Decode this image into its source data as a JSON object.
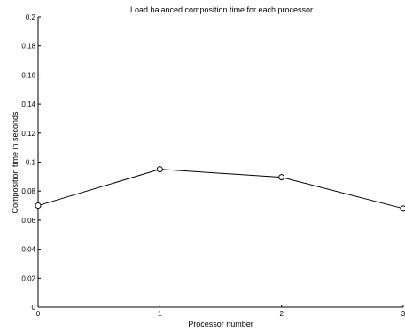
{
  "chart_data": {
    "type": "line",
    "title": "Load balanced composition time for each processor",
    "xlabel": "Processor number",
    "ylabel": "Composition time in seconds",
    "x": [
      0,
      1,
      2,
      3
    ],
    "values": [
      0.07,
      0.095,
      0.0895,
      0.068
    ],
    "xlim": [
      0,
      3
    ],
    "ylim": [
      0,
      0.2
    ],
    "xticks": [
      "0",
      "1",
      "2",
      "3"
    ],
    "yticks": [
      "0",
      "0.02",
      "0.04",
      "0.06",
      "0.08",
      "0.1",
      "0.12",
      "0.14",
      "0.16",
      "0.18",
      "0.2"
    ],
    "grid": false,
    "marker": "circle-open",
    "line_color": "#000000"
  }
}
